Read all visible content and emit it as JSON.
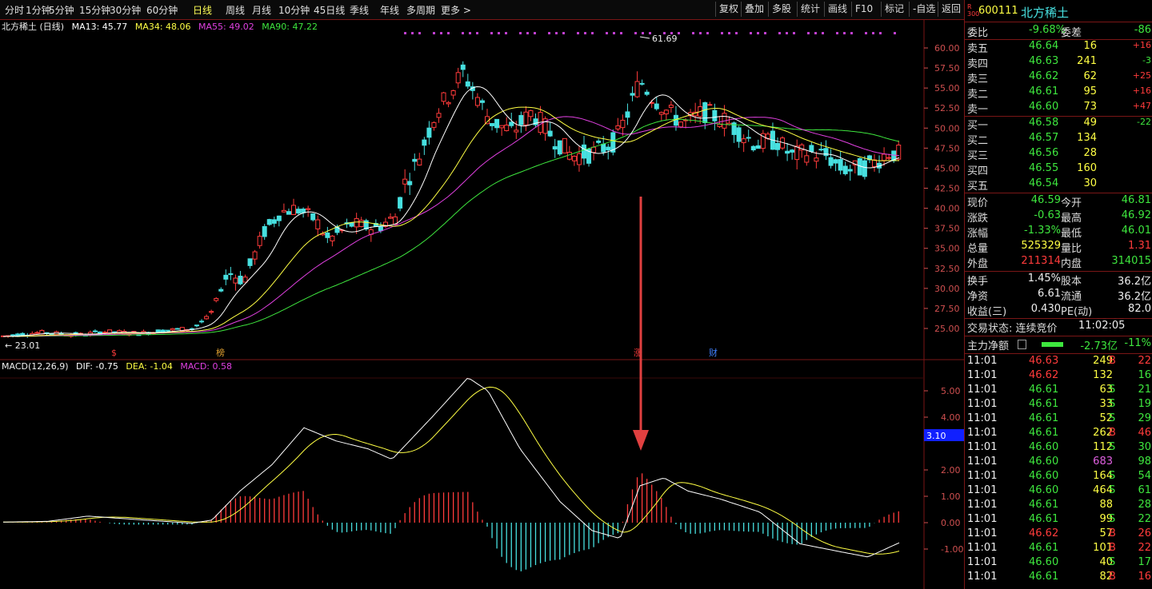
{
  "toolbar": {
    "periods": [
      "分时",
      "1分钟",
      "5分钟",
      "15分钟",
      "30分钟",
      "60分钟",
      "日线",
      "周线",
      "月线",
      "10分钟",
      "45日线",
      "季线",
      "年线",
      "多周期",
      "更多 >"
    ],
    "active_period": "日线",
    "actions": [
      "复权",
      "叠加",
      "多股",
      "统计",
      "画线",
      "F10",
      "标记",
      "-自选",
      "返回"
    ]
  },
  "chart": {
    "legend_title": "北方稀土 (日线)",
    "ma13": "MA13: 45.77",
    "ma34": "MA34: 48.06",
    "ma55": "MA55: 49.02",
    "ma90": "MA90: 47.22",
    "y_ticks": [
      "60.00",
      "57.50",
      "55.00",
      "52.50",
      "50.00",
      "47.50",
      "45.00",
      "42.50",
      "40.00",
      "37.50",
      "35.00",
      "32.50",
      "30.00",
      "27.50",
      "25.00"
    ],
    "high_label": "61.69",
    "low_label": "23.01",
    "markers": [
      "$",
      "榜",
      "涨",
      "财"
    ],
    "macd_title": "MACD(12,26,9)",
    "dif": "DIF: -0.75",
    "dea": "DEA: -1.04",
    "macd": "MACD: 0.58",
    "macd_ticks": [
      "5.00",
      "4.00",
      "2.00",
      "1.00",
      "0.00",
      "-1.00"
    ],
    "macd_tag": "3.10",
    "colors": {
      "up": "#ff3b3b",
      "down": "#47e0e0",
      "ma13": "#ffffff",
      "ma34": "#ffff44",
      "ma55": "#e040e0",
      "ma90": "#3ee63e"
    }
  },
  "panel": {
    "code_prefix": "R\n300",
    "code": "600111",
    "name": "北方稀土",
    "weibi_label": "委比",
    "weibi": "-9.68%",
    "weicha_label": "委差",
    "weicha": "-86",
    "asks": [
      {
        "label": "卖五",
        "price": "46.64",
        "vol": "16",
        "chg": "+16"
      },
      {
        "label": "卖四",
        "price": "46.63",
        "vol": "241",
        "chg": "-3"
      },
      {
        "label": "卖三",
        "price": "46.62",
        "vol": "62",
        "chg": "+25"
      },
      {
        "label": "卖二",
        "price": "46.61",
        "vol": "95",
        "chg": "+16"
      },
      {
        "label": "卖一",
        "price": "46.60",
        "vol": "73",
        "chg": "+47"
      }
    ],
    "bids": [
      {
        "label": "买一",
        "price": "46.58",
        "vol": "49",
        "chg": "-22"
      },
      {
        "label": "买二",
        "price": "46.57",
        "vol": "134",
        "chg": ""
      },
      {
        "label": "买三",
        "price": "46.56",
        "vol": "28",
        "chg": ""
      },
      {
        "label": "买四",
        "price": "46.55",
        "vol": "160",
        "chg": ""
      },
      {
        "label": "买五",
        "price": "46.54",
        "vol": "30",
        "chg": ""
      }
    ],
    "stats": [
      {
        "l1": "现价",
        "v1": "46.59",
        "l2": "今开",
        "v2": "46.81"
      },
      {
        "l1": "涨跌",
        "v1": "-0.63",
        "l2": "最高",
        "v2": "46.92"
      },
      {
        "l1": "涨幅",
        "v1": "-1.33%",
        "l2": "最低",
        "v2": "46.01"
      },
      {
        "l1": "总量",
        "v1": "525329",
        "l2": "量比",
        "v2": "1.31"
      },
      {
        "l1": "外盘",
        "v1": "211314",
        "l2": "内盘",
        "v2": "314015"
      }
    ],
    "stats2": [
      {
        "l1": "换手",
        "v1": "1.45%",
        "l2": "股本",
        "v2": "36.2亿"
      },
      {
        "l1": "净资",
        "v1": "6.61",
        "l2": "流通",
        "v2": "36.2亿"
      },
      {
        "l1": "收益(三)",
        "v1": "0.430",
        "l2": "PE(动)",
        "v2": "82.0"
      }
    ],
    "trade_state": "交易状态: 连续竞价",
    "trade_time": "11:02:05",
    "main_flow_label": "主力净额",
    "main_flow_value": "-2.73亿",
    "main_flow_pct": "-11%",
    "ticks": [
      {
        "t": "11:01",
        "p": "46.63",
        "v": "249",
        "s": "B",
        "n": "22"
      },
      {
        "t": "11:01",
        "p": "46.62",
        "v": "132",
        "s": "",
        "n": "16"
      },
      {
        "t": "11:01",
        "p": "46.61",
        "v": "63",
        "s": "S",
        "n": "21"
      },
      {
        "t": "11:01",
        "p": "46.61",
        "v": "33",
        "s": "S",
        "n": "19"
      },
      {
        "t": "11:01",
        "p": "46.61",
        "v": "52",
        "s": "S",
        "n": "29"
      },
      {
        "t": "11:01",
        "p": "46.61",
        "v": "262",
        "s": "B",
        "n": "46"
      },
      {
        "t": "11:01",
        "p": "46.60",
        "v": "112",
        "s": "S",
        "n": "30"
      },
      {
        "t": "11:01",
        "p": "46.60",
        "v": "683",
        "s": "",
        "n": "98"
      },
      {
        "t": "11:01",
        "p": "46.60",
        "v": "164",
        "s": "S",
        "n": "54"
      },
      {
        "t": "11:01",
        "p": "46.60",
        "v": "464",
        "s": "S",
        "n": "61"
      },
      {
        "t": "11:01",
        "p": "46.61",
        "v": "88",
        "s": "",
        "n": "28"
      },
      {
        "t": "11:01",
        "p": "46.61",
        "v": "99",
        "s": "S",
        "n": "22"
      },
      {
        "t": "11:01",
        "p": "46.62",
        "v": "57",
        "s": "B",
        "n": "26"
      },
      {
        "t": "11:01",
        "p": "46.61",
        "v": "101",
        "s": "B",
        "n": "22"
      },
      {
        "t": "11:01",
        "p": "46.60",
        "v": "40",
        "s": "S",
        "n": "17"
      },
      {
        "t": "11:01",
        "p": "46.61",
        "v": "82",
        "s": "B",
        "n": "16"
      }
    ]
  }
}
